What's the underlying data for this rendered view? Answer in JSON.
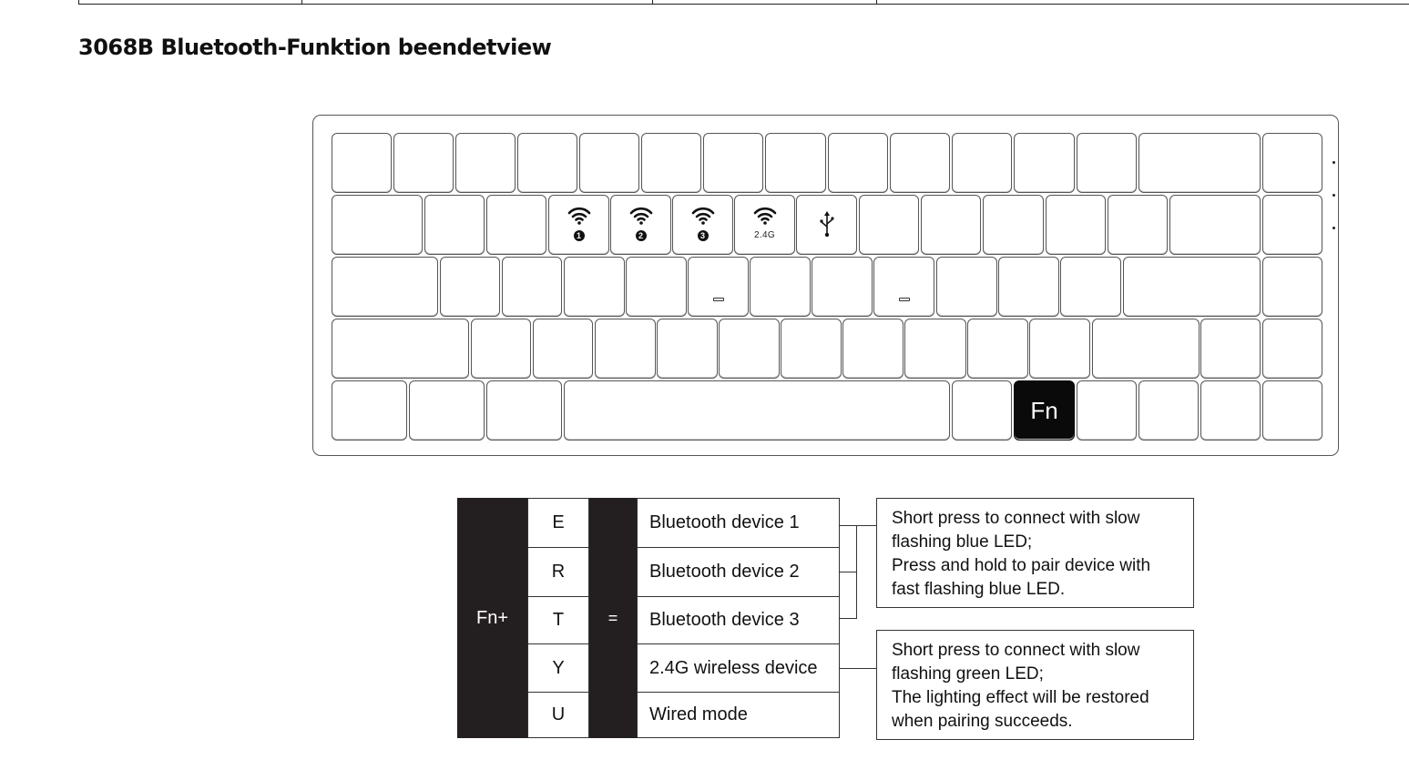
{
  "page_title": "3068B Bluetooth-Funktion beendetview",
  "keyboard": {
    "fn_key_label": "Fn",
    "legends": {
      "e_key_icon": "wifi-icon",
      "e_key_number": "1",
      "r_key_icon": "wifi-icon",
      "r_key_number": "2",
      "t_key_icon": "wifi-icon",
      "t_key_number": "3",
      "y_key_icon": "wifi-icon",
      "y_key_band": "2.4G",
      "u_key_icon": "usb-icon"
    }
  },
  "function_table": {
    "modifier": "Fn+",
    "equals": "=",
    "rows": [
      {
        "key": "E",
        "function": "Bluetooth device 1"
      },
      {
        "key": "R",
        "function": "Bluetooth device 2"
      },
      {
        "key": "T",
        "function": "Bluetooth device 3"
      },
      {
        "key": "Y",
        "function": "2.4G wireless device"
      },
      {
        "key": "U",
        "function": "Wired mode"
      }
    ],
    "bluetooth_note": [
      "Short press to connect with slow",
      "flashing blue LED;",
      "Press and hold to pair device with",
      "fast flashing blue LED."
    ],
    "wireless_note": [
      "Short press to connect with slow",
      "flashing green LED;",
      "The lighting effect will be restored",
      "when pairing succeeds."
    ]
  }
}
